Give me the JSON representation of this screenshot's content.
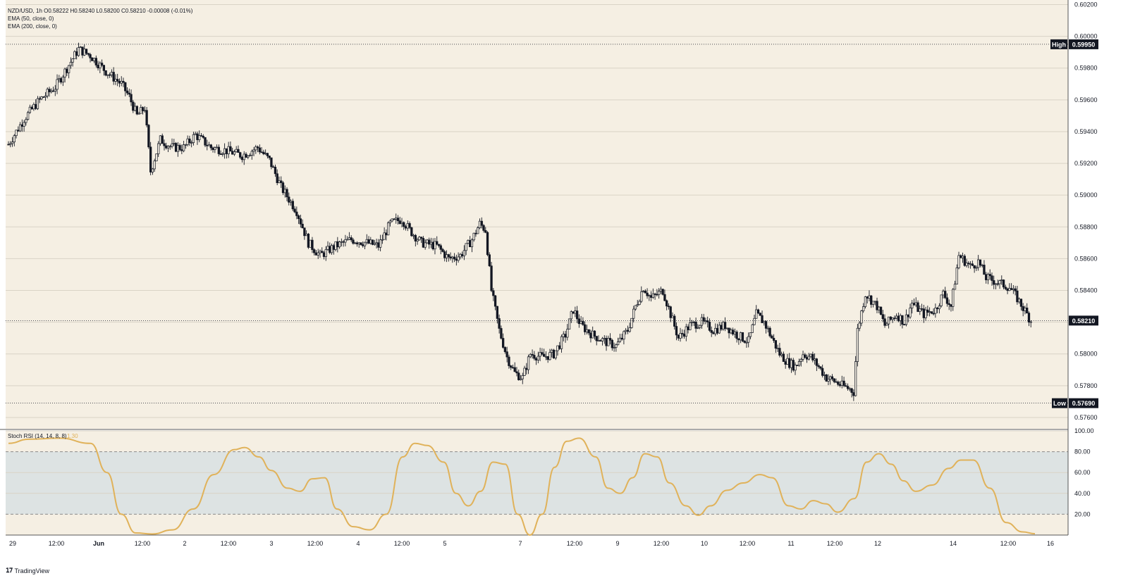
{
  "header": {
    "symbol_line": "NZD/USD, 1h  O0.58222  H0.58240  L0.58200  C0.58210  -0.00008 (-0.01%)",
    "ema50": "EMA (50, close, 0)",
    "ema200": "EMA (200, close, 0)"
  },
  "footer": {
    "brand": "TradingView",
    "logo": "tradingview-logo-icon"
  },
  "colors": {
    "chart_bg": "#f5efe3",
    "candle": "#131722",
    "grid": "#d9d3c6",
    "stoch_line": "#e0b25a",
    "stoch_band": "#dde3e3"
  },
  "chart_data": [
    {
      "type": "candlestick",
      "title": "NZD/USD, 1h",
      "ylim": [
        0.5752,
        0.6022
      ],
      "y_ticks": [
        "0.60200",
        "0.60000",
        "0.59800",
        "0.59600",
        "0.59400",
        "0.59200",
        "0.59000",
        "0.58800",
        "0.58600",
        "0.58400",
        "0.58200",
        "0.58000",
        "0.57800",
        "0.57600"
      ],
      "x_ticks": [
        "29",
        "12:00",
        "Jun",
        "12:00",
        "2",
        "12:00",
        "3",
        "12:00",
        "4",
        "12:00",
        "5",
        "7",
        "12:00",
        "9",
        "12:00",
        "10",
        "12:00",
        "11",
        "12:00",
        "12",
        "14",
        "12:00",
        "16"
      ],
      "markers": {
        "high_label": "High",
        "high_value": "0.59950",
        "low_label": "Low",
        "low_value": "0.57690",
        "last_value": "0.58210"
      },
      "ohlc": {
        "open": 0.58222,
        "high": 0.5824,
        "low": 0.582,
        "close": 0.5821,
        "change": "-0.00008 (-0.01%)"
      },
      "anchors": [
        [
          0,
          0.5932
        ],
        [
          8,
          0.5948
        ],
        [
          16,
          0.596
        ],
        [
          24,
          0.5968
        ],
        [
          30,
          0.598
        ],
        [
          36,
          0.5992
        ],
        [
          42,
          0.5988
        ],
        [
          50,
          0.5978
        ],
        [
          58,
          0.597
        ],
        [
          62,
          0.5962
        ],
        [
          66,
          0.595
        ],
        [
          70,
          0.5955
        ],
        [
          73,
          0.5915
        ],
        [
          78,
          0.5935
        ],
        [
          84,
          0.593
        ],
        [
          90,
          0.593
        ],
        [
          96,
          0.5938
        ],
        [
          104,
          0.593
        ],
        [
          112,
          0.5928
        ],
        [
          120,
          0.5925
        ],
        [
          128,
          0.593
        ],
        [
          134,
          0.5922
        ],
        [
          140,
          0.5905
        ],
        [
          148,
          0.589
        ],
        [
          154,
          0.587
        ],
        [
          160,
          0.5862
        ],
        [
          168,
          0.5868
        ],
        [
          176,
          0.5872
        ],
        [
          184,
          0.587
        ],
        [
          190,
          0.5868
        ],
        [
          196,
          0.5882
        ],
        [
          202,
          0.5885
        ],
        [
          206,
          0.5878
        ],
        [
          212,
          0.587
        ],
        [
          220,
          0.5868
        ],
        [
          226,
          0.586
        ],
        [
          232,
          0.5862
        ],
        [
          238,
          0.5872
        ],
        [
          242,
          0.5882
        ],
        [
          245,
          0.5878
        ],
        [
          248,
          0.584
        ],
        [
          252,
          0.5815
        ],
        [
          256,
          0.5798
        ],
        [
          260,
          0.5788
        ],
        [
          264,
          0.5785
        ],
        [
          268,
          0.58
        ],
        [
          274,
          0.5798
        ],
        [
          280,
          0.58
        ],
        [
          286,
          0.5812
        ],
        [
          290,
          0.5828
        ],
        [
          294,
          0.5818
        ],
        [
          300,
          0.5812
        ],
        [
          306,
          0.5808
        ],
        [
          312,
          0.5805
        ],
        [
          318,
          0.5815
        ],
        [
          322,
          0.583
        ],
        [
          326,
          0.5842
        ],
        [
          330,
          0.5835
        ],
        [
          336,
          0.584
        ],
        [
          340,
          0.5825
        ],
        [
          344,
          0.581
        ],
        [
          350,
          0.5818
        ],
        [
          356,
          0.582
        ],
        [
          362,
          0.5815
        ],
        [
          368,
          0.5818
        ],
        [
          374,
          0.5812
        ],
        [
          380,
          0.5808
        ],
        [
          384,
          0.5825
        ],
        [
          388,
          0.582
        ],
        [
          392,
          0.581
        ],
        [
          396,
          0.58
        ],
        [
          400,
          0.5795
        ],
        [
          404,
          0.5792
        ],
        [
          408,
          0.58
        ],
        [
          412,
          0.5798
        ],
        [
          416,
          0.5792
        ],
        [
          420,
          0.5785
        ],
        [
          424,
          0.5783
        ],
        [
          428,
          0.578
        ],
        [
          432,
          0.5778
        ],
        [
          434,
          0.5776
        ],
        [
          436,
          0.5815
        ],
        [
          440,
          0.5838
        ],
        [
          446,
          0.583
        ],
        [
          450,
          0.5818
        ],
        [
          456,
          0.5825
        ],
        [
          460,
          0.582
        ],
        [
          464,
          0.5832
        ],
        [
          470,
          0.5825
        ],
        [
          476,
          0.5828
        ],
        [
          480,
          0.5838
        ],
        [
          484,
          0.583
        ],
        [
          488,
          0.5862
        ],
        [
          494,
          0.5855
        ],
        [
          498,
          0.5858
        ],
        [
          502,
          0.5848
        ],
        [
          508,
          0.5845
        ],
        [
          514,
          0.5842
        ],
        [
          518,
          0.5835
        ],
        [
          522,
          0.5827
        ],
        [
          525,
          0.5821
        ]
      ],
      "n_candles": 526
    },
    {
      "type": "line",
      "title": "Stoch RSI (14, 14, 8, 8)",
      "value_label": "1.30",
      "ylim": [
        0,
        100
      ],
      "y_ticks": [
        "100.00",
        "80.00",
        "60.00",
        "40.00",
        "20.00"
      ],
      "band": [
        20,
        80
      ],
      "points": [
        [
          0,
          88
        ],
        [
          10,
          92
        ],
        [
          25,
          93
        ],
        [
          40,
          88
        ],
        [
          48,
          60
        ],
        [
          55,
          20
        ],
        [
          62,
          2
        ],
        [
          70,
          1
        ],
        [
          80,
          5
        ],
        [
          90,
          25
        ],
        [
          100,
          58
        ],
        [
          110,
          82
        ],
        [
          115,
          84
        ],
        [
          122,
          75
        ],
        [
          128,
          62
        ],
        [
          136,
          45
        ],
        [
          142,
          42
        ],
        [
          148,
          54
        ],
        [
          154,
          55
        ],
        [
          160,
          25
        ],
        [
          168,
          8
        ],
        [
          176,
          5
        ],
        [
          184,
          20
        ],
        [
          192,
          75
        ],
        [
          198,
          88
        ],
        [
          204,
          86
        ],
        [
          212,
          70
        ],
        [
          218,
          40
        ],
        [
          224,
          28
        ],
        [
          230,
          42
        ],
        [
          236,
          70
        ],
        [
          242,
          68
        ],
        [
          248,
          20
        ],
        [
          254,
          0
        ],
        [
          260,
          20
        ],
        [
          266,
          65
        ],
        [
          272,
          90
        ],
        [
          278,
          93
        ],
        [
          286,
          75
        ],
        [
          292,
          45
        ],
        [
          298,
          40
        ],
        [
          304,
          55
        ],
        [
          310,
          78
        ],
        [
          316,
          75
        ],
        [
          322,
          50
        ],
        [
          330,
          28
        ],
        [
          336,
          19
        ],
        [
          342,
          28
        ],
        [
          350,
          43
        ],
        [
          358,
          50
        ],
        [
          366,
          58
        ],
        [
          372,
          55
        ],
        [
          380,
          28
        ],
        [
          386,
          25
        ],
        [
          392,
          33
        ],
        [
          398,
          30
        ],
        [
          404,
          22
        ],
        [
          412,
          35
        ],
        [
          418,
          70
        ],
        [
          424,
          78
        ],
        [
          430,
          68
        ],
        [
          436,
          52
        ],
        [
          442,
          42
        ],
        [
          450,
          48
        ],
        [
          458,
          64
        ],
        [
          464,
          72
        ],
        [
          470,
          72
        ],
        [
          478,
          45
        ],
        [
          486,
          12
        ],
        [
          494,
          3
        ],
        [
          500,
          1.3
        ]
      ]
    }
  ]
}
